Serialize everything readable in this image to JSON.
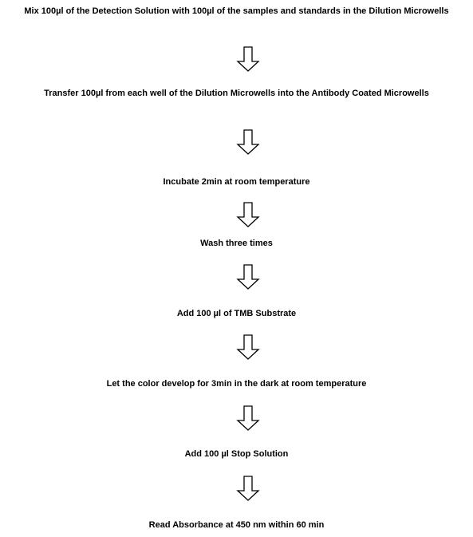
{
  "steps": [
    {
      "text": "Mix 100µl of the Detection Solution with 100µl of the samples and standards in the Dilution Microwells"
    },
    {
      "text": "Transfer 100µl from each well of the Dilution Microwells into the Antibody Coated Microwells"
    },
    {
      "text": "Incubate 2min at room temperature"
    },
    {
      "text": "Wash three times"
    },
    {
      "text": "Add 100 µl of TMB Substrate"
    },
    {
      "text": "Let the color develop for 3min in the dark at room temperature"
    },
    {
      "text": "Add 100 µl Stop Solution"
    },
    {
      "text": "Read Absorbance at 450 nm within 60 min"
    }
  ]
}
